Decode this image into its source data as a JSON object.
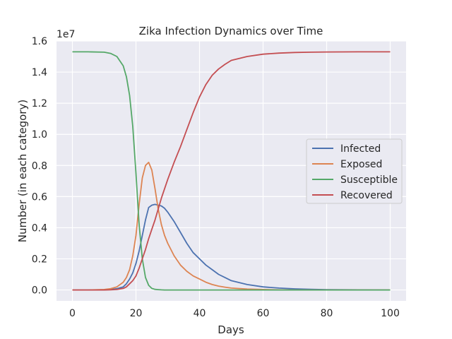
{
  "chart_data": {
    "type": "line",
    "title": "Zika Infection Dynamics over Time",
    "xlabel": "Days",
    "ylabel": "Number (in each category)",
    "y_offset_text": "1e7",
    "xlim": [
      -5,
      105
    ],
    "ylim": [
      -0.07,
      1.6
    ],
    "y_units_multiplier": 10000000,
    "xticks": [
      0,
      20,
      40,
      60,
      80,
      100
    ],
    "yticks": [
      0.0,
      0.2,
      0.4,
      0.6,
      0.8,
      1.0,
      1.2,
      1.4,
      1.6
    ],
    "ytick_labels": [
      "0.0",
      "0.2",
      "0.4",
      "0.6",
      "0.8",
      "1.0",
      "1.2",
      "1.4",
      "1.6"
    ],
    "grid": true,
    "legend_position": "center-right",
    "x": [
      0,
      5,
      10,
      12,
      14,
      16,
      17,
      18,
      19,
      20,
      21,
      22,
      23,
      24,
      25,
      26,
      27,
      28,
      29,
      30,
      32,
      34,
      36,
      38,
      40,
      42,
      44,
      46,
      48,
      50,
      55,
      60,
      65,
      70,
      75,
      80,
      90,
      100
    ],
    "series": [
      {
        "name": "Infected",
        "color": "#4c72b0",
        "values": [
          0.0,
          0.0,
          0.001,
          0.003,
          0.008,
          0.02,
          0.04,
          0.07,
          0.11,
          0.17,
          0.25,
          0.35,
          0.45,
          0.53,
          0.545,
          0.55,
          0.545,
          0.54,
          0.525,
          0.5,
          0.44,
          0.37,
          0.3,
          0.24,
          0.2,
          0.16,
          0.13,
          0.1,
          0.08,
          0.06,
          0.035,
          0.02,
          0.012,
          0.007,
          0.004,
          0.002,
          0.001,
          0.0
        ]
      },
      {
        "name": "Exposed",
        "color": "#dd8452",
        "values": [
          0.0,
          0.0,
          0.003,
          0.008,
          0.02,
          0.05,
          0.08,
          0.13,
          0.22,
          0.35,
          0.55,
          0.72,
          0.8,
          0.82,
          0.77,
          0.65,
          0.52,
          0.42,
          0.35,
          0.3,
          0.22,
          0.16,
          0.12,
          0.09,
          0.07,
          0.05,
          0.035,
          0.025,
          0.018,
          0.012,
          0.006,
          0.003,
          0.001,
          0.0,
          0.0,
          0.0,
          0.0,
          0.0
        ]
      },
      {
        "name": "Susceptible",
        "color": "#55a868",
        "values": [
          1.53,
          1.53,
          1.528,
          1.52,
          1.5,
          1.44,
          1.37,
          1.25,
          1.05,
          0.75,
          0.42,
          0.2,
          0.08,
          0.03,
          0.01,
          0.004,
          0.002,
          0.001,
          0.0,
          0.0,
          0.0,
          0.0,
          0.0,
          0.0,
          0.0,
          0.0,
          0.0,
          0.0,
          0.0,
          0.0,
          0.0,
          0.0,
          0.0,
          0.0,
          0.0,
          0.0,
          0.0,
          0.0
        ]
      },
      {
        "name": "Recovered",
        "color": "#c44e52",
        "values": [
          0.0,
          0.0,
          0.0,
          0.001,
          0.003,
          0.01,
          0.02,
          0.04,
          0.06,
          0.09,
          0.14,
          0.2,
          0.26,
          0.33,
          0.39,
          0.45,
          0.52,
          0.59,
          0.65,
          0.71,
          0.82,
          0.92,
          1.03,
          1.14,
          1.24,
          1.32,
          1.38,
          1.42,
          1.45,
          1.475,
          1.5,
          1.515,
          1.522,
          1.526,
          1.528,
          1.529,
          1.53,
          1.53
        ]
      }
    ]
  }
}
